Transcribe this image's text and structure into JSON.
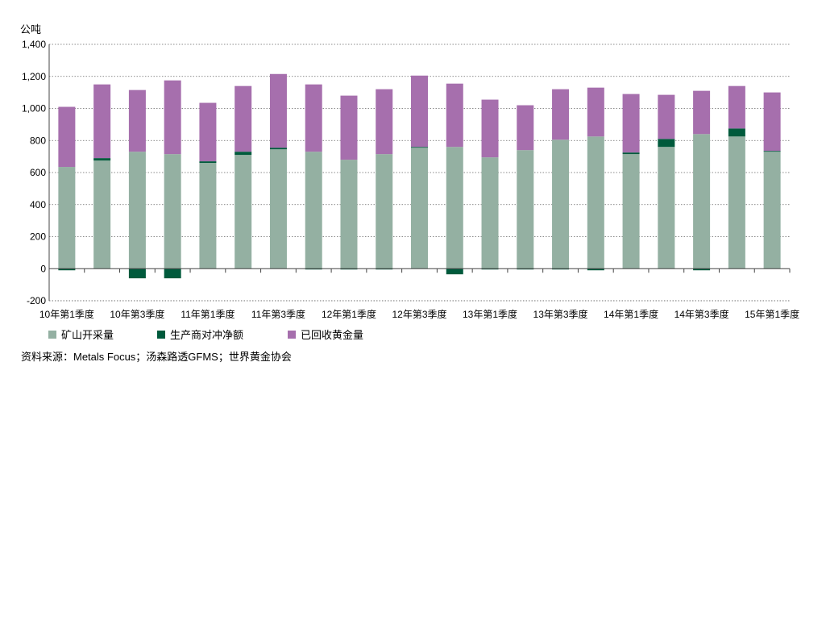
{
  "chart_data": {
    "type": "bar",
    "stacked": true,
    "ylabel": "公吨",
    "ylim": [
      -200,
      1400
    ],
    "yticks": [
      "1,400",
      "1,200",
      "1,000",
      "800",
      "600",
      "400",
      "200",
      "0",
      "-200"
    ],
    "grid": true,
    "categories": [
      "10Q1",
      "10Q2",
      "10Q3",
      "10Q4",
      "11Q1",
      "11Q2",
      "11Q3",
      "11Q4",
      "12Q1",
      "12Q2",
      "12Q3",
      "12Q4",
      "13Q1",
      "13Q2",
      "13Q3",
      "13Q4",
      "14Q1",
      "14Q2",
      "14Q3",
      "14Q4",
      "15Q1"
    ],
    "xtick_labels": [
      {
        "index": 0,
        "label": "10年第1季度"
      },
      {
        "index": 2,
        "label": "10年第3季度"
      },
      {
        "index": 4,
        "label": "11年第1季度"
      },
      {
        "index": 6,
        "label": "11年第3季度"
      },
      {
        "index": 8,
        "label": "12年第1季度"
      },
      {
        "index": 10,
        "label": "12年第3季度"
      },
      {
        "index": 12,
        "label": "13年第1季度"
      },
      {
        "index": 14,
        "label": "13年第3季度"
      },
      {
        "index": 16,
        "label": "14年第1季度"
      },
      {
        "index": 18,
        "label": "14年第3季度"
      },
      {
        "index": 20,
        "label": "15年第1季度"
      }
    ],
    "series": [
      {
        "name": "矿山开采量",
        "color": "#94b0a2",
        "values": [
          635,
          675,
          730,
          715,
          660,
          710,
          745,
          730,
          680,
          715,
          755,
          760,
          695,
          740,
          805,
          825,
          715,
          760,
          840,
          825,
          730
        ]
      },
      {
        "name": "生产商对冲净额",
        "color": "#005a3c",
        "values": [
          -10,
          15,
          -60,
          -60,
          10,
          20,
          10,
          -5,
          -5,
          -5,
          5,
          -35,
          -5,
          -5,
          -5,
          -10,
          10,
          50,
          -10,
          50,
          5
        ]
      },
      {
        "name": "已回收黄金量",
        "color": "#a66fad",
        "values": [
          375,
          460,
          385,
          460,
          365,
          410,
          460,
          420,
          400,
          405,
          445,
          395,
          360,
          280,
          315,
          305,
          365,
          275,
          270,
          265,
          365
        ]
      }
    ],
    "legend": "bottom-left"
  },
  "source": "资料来源：Metals Focus；汤森路透GFMS；世界黄金协会"
}
